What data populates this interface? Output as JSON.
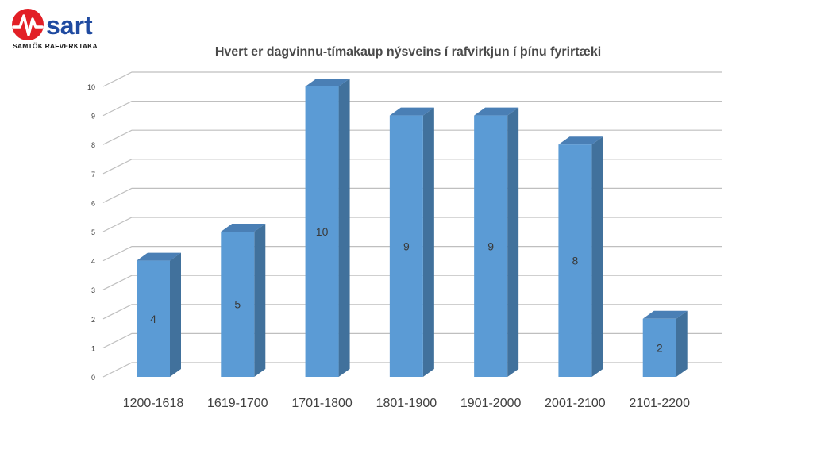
{
  "brand": {
    "logo_word": "sart",
    "tagline": "SAMTÖK RAFVERKTAKA",
    "colors": {
      "red": "#e21f26",
      "blue": "#1f4aa0"
    }
  },
  "chart_data": {
    "type": "bar",
    "title": "Hvert er dagvinnu-tímakaup nýsveins í rafvirkjun í þínu fyrirtæki",
    "categories": [
      "1200-1618",
      "1619-1700",
      "1701-1800",
      "1801-1900",
      "1901-2000",
      "2001-2100",
      "2101-2200"
    ],
    "values": [
      4,
      5,
      10,
      9,
      9,
      8,
      2
    ],
    "ylim": [
      0,
      10
    ],
    "yticks": [
      0,
      1,
      2,
      3,
      4,
      5,
      6,
      7,
      8,
      9,
      10
    ],
    "grid": true,
    "legend": "none",
    "colors": {
      "front": "#5b9bd5",
      "side": "#41719c",
      "top": "#4a7fb5",
      "grid": "#bfbfbf"
    }
  }
}
